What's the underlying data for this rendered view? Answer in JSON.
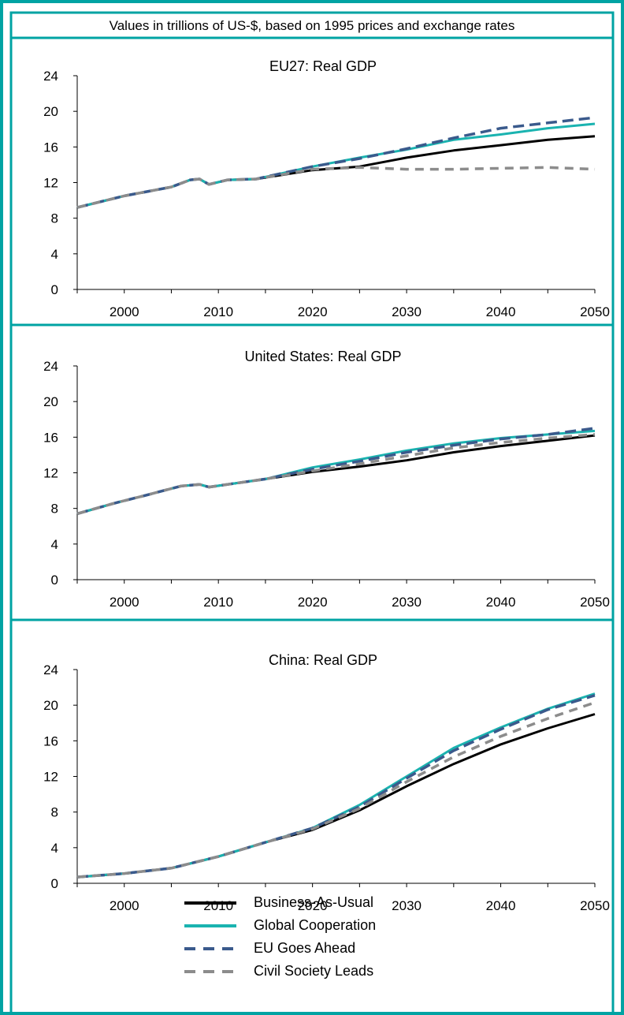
{
  "header": {
    "subtitle": "Values in trillions of US-$, based on 1995 prices and exchange rates"
  },
  "colors": {
    "frame": "#00a3a3",
    "axis": "#000000",
    "series": {
      "Business-As-Usual": "#000000",
      "Global Cooperation": "#1ab3b0",
      "EU Goes Ahead": "#3a5a8c",
      "Civil Society Leads": "#8c8c8c"
    }
  },
  "legend": {
    "items": [
      {
        "label": "Business-As-Usual",
        "style": "solid",
        "color": "#000000"
      },
      {
        "label": "Global Cooperation",
        "style": "solid",
        "color": "#1ab3b0"
      },
      {
        "label": "EU Goes Ahead",
        "style": "dashed",
        "color": "#3a5a8c"
      },
      {
        "label": "Civil Society Leads",
        "style": "dashed",
        "color": "#8c8c8c"
      }
    ]
  },
  "chart_data": [
    {
      "type": "line",
      "title": "EU27: Real GDP",
      "xlim": [
        1995,
        2050
      ],
      "ylim": [
        0,
        24
      ],
      "x_ticks": [
        2000,
        2010,
        2020,
        2030,
        2040,
        2050
      ],
      "y_ticks": [
        0,
        4,
        8,
        12,
        16,
        20,
        24
      ],
      "grid": false,
      "x": [
        1995,
        2000,
        2005,
        2007,
        2008,
        2009,
        2011,
        2014,
        2020,
        2025,
        2030,
        2035,
        2040,
        2045,
        2050
      ],
      "series": [
        {
          "name": "Business-As-Usual",
          "values": [
            9.2,
            10.5,
            11.5,
            12.3,
            12.4,
            11.8,
            12.3,
            12.4,
            13.4,
            13.8,
            14.8,
            15.6,
            16.2,
            16.8,
            17.2
          ]
        },
        {
          "name": "Global Cooperation",
          "values": [
            9.2,
            10.5,
            11.5,
            12.3,
            12.4,
            11.8,
            12.3,
            12.4,
            13.8,
            14.8,
            15.7,
            16.8,
            17.4,
            18.1,
            18.6
          ]
        },
        {
          "name": "EU Goes Ahead",
          "values": [
            9.2,
            10.5,
            11.5,
            12.3,
            12.4,
            11.8,
            12.3,
            12.4,
            13.8,
            14.7,
            15.8,
            17.0,
            18.1,
            18.7,
            19.3
          ]
        },
        {
          "name": "Civil Society Leads",
          "values": [
            9.2,
            10.5,
            11.5,
            12.3,
            12.4,
            11.8,
            12.3,
            12.4,
            13.5,
            13.7,
            13.5,
            13.5,
            13.6,
            13.7,
            13.5
          ]
        }
      ]
    },
    {
      "type": "line",
      "title": "United States: Real GDP",
      "xlim": [
        1995,
        2050
      ],
      "ylim": [
        0,
        24
      ],
      "x_ticks": [
        2000,
        2010,
        2020,
        2030,
        2040,
        2050
      ],
      "y_ticks": [
        0,
        4,
        8,
        12,
        16,
        20,
        24
      ],
      "grid": false,
      "x": [
        1995,
        1999,
        2002,
        2006,
        2008,
        2009,
        2011,
        2015,
        2020,
        2025,
        2030,
        2035,
        2040,
        2045,
        2050
      ],
      "series": [
        {
          "name": "Business-As-Usual",
          "values": [
            7.4,
            8.6,
            9.4,
            10.5,
            10.7,
            10.4,
            10.7,
            11.3,
            12.1,
            12.7,
            13.4,
            14.3,
            15.0,
            15.6,
            16.2
          ]
        },
        {
          "name": "Global Cooperation",
          "values": [
            7.4,
            8.6,
            9.4,
            10.5,
            10.7,
            10.4,
            10.7,
            11.3,
            12.6,
            13.5,
            14.5,
            15.3,
            15.9,
            16.3,
            16.7
          ]
        },
        {
          "name": "EU Goes Ahead",
          "values": [
            7.4,
            8.6,
            9.4,
            10.5,
            10.7,
            10.4,
            10.7,
            11.3,
            12.4,
            13.3,
            14.3,
            15.1,
            15.8,
            16.3,
            17.0
          ]
        },
        {
          "name": "Civil Society Leads",
          "values": [
            7.4,
            8.6,
            9.4,
            10.5,
            10.7,
            10.4,
            10.7,
            11.3,
            12.2,
            13.0,
            13.9,
            14.8,
            15.4,
            15.9,
            16.3
          ]
        }
      ]
    },
    {
      "type": "line",
      "title": "China: Real GDP",
      "xlim": [
        1995,
        2050
      ],
      "ylim": [
        0,
        24
      ],
      "x_ticks": [
        2000,
        2010,
        2020,
        2030,
        2040,
        2050
      ],
      "y_ticks": [
        0,
        4,
        8,
        12,
        16,
        20,
        24
      ],
      "grid": false,
      "x": [
        1995,
        2000,
        2005,
        2010,
        2015,
        2020,
        2025,
        2030,
        2035,
        2040,
        2045,
        2050
      ],
      "series": [
        {
          "name": "Business-As-Usual",
          "values": [
            0.7,
            1.1,
            1.7,
            3.0,
            4.6,
            6.0,
            8.2,
            10.9,
            13.4,
            15.6,
            17.4,
            19.0
          ]
        },
        {
          "name": "Global Cooperation",
          "values": [
            0.7,
            1.1,
            1.7,
            3.0,
            4.6,
            6.2,
            8.8,
            12.0,
            15.2,
            17.5,
            19.6,
            21.3
          ]
        },
        {
          "name": "EU Goes Ahead",
          "values": [
            0.7,
            1.1,
            1.7,
            3.0,
            4.6,
            6.2,
            8.6,
            11.8,
            14.9,
            17.3,
            19.5,
            21.1
          ]
        },
        {
          "name": "Civil Society Leads",
          "values": [
            0.7,
            1.1,
            1.7,
            3.0,
            4.6,
            6.1,
            8.4,
            11.4,
            14.2,
            16.5,
            18.5,
            20.3
          ]
        }
      ]
    }
  ]
}
